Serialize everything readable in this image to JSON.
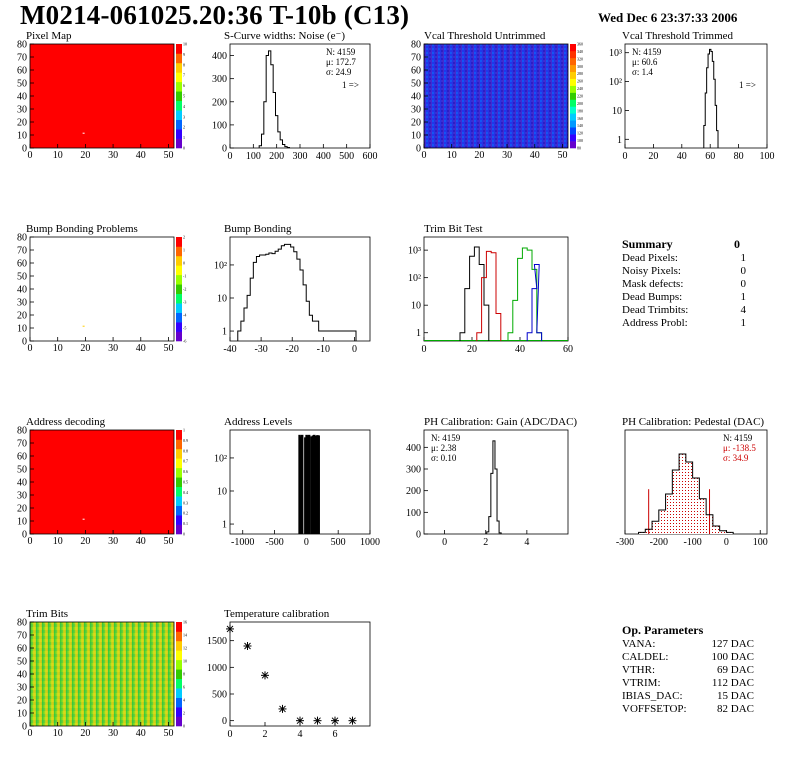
{
  "header": {
    "title": "M0214-061025.20:36 T-10b (C13)",
    "date": "Wed Dec  6 23:37:33 2006"
  },
  "colors": {
    "map_red": "#ff0000",
    "hist_line": "#000000",
    "trim_red": "#cc0000",
    "trim_green": "#00aa00",
    "trim_blue": "#0000cc",
    "pedestal_stats": "#cc0000"
  },
  "summary": {
    "title": "Summary",
    "total": "0",
    "rows": [
      {
        "label": "Dead Pixels:",
        "value": "1"
      },
      {
        "label": "Noisy Pixels:",
        "value": "0"
      },
      {
        "label": "Mask defects:",
        "value": "0"
      },
      {
        "label": "Dead Bumps:",
        "value": "1"
      },
      {
        "label": "Dead Trimbits:",
        "value": "4"
      },
      {
        "label": "Address Probl:",
        "value": "1"
      }
    ]
  },
  "op_params": {
    "title": "Op. Parameters",
    "rows": [
      {
        "label": "VANA:",
        "value": "127 DAC"
      },
      {
        "label": "CALDEL:",
        "value": "100 DAC"
      },
      {
        "label": "VTHR:",
        "value": "69 DAC"
      },
      {
        "label": "VTRIM:",
        "value": "112 DAC"
      },
      {
        "label": "IBIAS_DAC:",
        "value": "15 DAC"
      },
      {
        "label": "VOFFSETOP:",
        "value": "82 DAC"
      }
    ]
  },
  "chart_data": [
    {
      "id": "pixel-map",
      "type": "heatmap",
      "title": "Pixel Map",
      "fill": "red-uniform",
      "xticks": [
        "0",
        "10",
        "20",
        "30",
        "40",
        "50"
      ],
      "yticks": [
        "0",
        "10",
        "20",
        "30",
        "40",
        "50",
        "60",
        "70",
        "80"
      ],
      "xlim": [
        0,
        52
      ],
      "ylim": [
        0,
        80
      ],
      "palette_labels": [
        "0",
        "1",
        "2",
        "3",
        "4",
        "5",
        "6",
        "7",
        "8",
        "9",
        "10"
      ]
    },
    {
      "id": "noise",
      "type": "histogram",
      "title": "S-Curve widths: Noise (e⁻)",
      "log": false,
      "xlim": [
        0,
        600
      ],
      "ylim": [
        0,
        450
      ],
      "xticks": [
        "0",
        "100",
        "200",
        "300",
        "400",
        "500",
        "600"
      ],
      "yticks": [
        "0",
        "100",
        "200",
        "300",
        "400"
      ],
      "x": [
        130,
        140,
        150,
        160,
        170,
        180,
        190,
        200,
        210,
        220,
        230,
        240,
        250
      ],
      "values": [
        10,
        60,
        200,
        400,
        420,
        360,
        240,
        140,
        70,
        35,
        15,
        6,
        2
      ],
      "stats": [
        {
          "label": "N:",
          "value": "4159"
        },
        {
          "label": "μ:",
          "value": "172.7"
        },
        {
          "label": "σ:",
          "value": "24.9"
        }
      ],
      "overflow": "1 =>"
    },
    {
      "id": "vcal-untrimmed",
      "type": "heatmap",
      "title": "Vcal Threshold Untrimmed",
      "fill": "noise-blue",
      "xticks": [
        "0",
        "10",
        "20",
        "30",
        "40",
        "50"
      ],
      "yticks": [
        "0",
        "10",
        "20",
        "30",
        "40",
        "50",
        "60",
        "70",
        "80"
      ],
      "xlim": [
        0,
        52
      ],
      "ylim": [
        0,
        80
      ],
      "palette_labels": [
        "80",
        "100",
        "120",
        "140",
        "160",
        "180",
        "200",
        "220",
        "240",
        "260",
        "280",
        "300",
        "320",
        "340",
        "360"
      ]
    },
    {
      "id": "vcal-trimmed",
      "type": "histogram",
      "title": "Vcal Threshold Trimmed",
      "log": true,
      "xlim": [
        0,
        100
      ],
      "ylim": [
        0.5,
        2000
      ],
      "xticks": [
        "0",
        "20",
        "40",
        "60",
        "80",
        "100"
      ],
      "yticks": [
        "1",
        "10",
        "10²",
        "10³"
      ],
      "x": [
        56,
        57,
        58,
        59,
        60,
        61,
        62,
        63,
        64,
        65
      ],
      "values": [
        3,
        40,
        300,
        900,
        1300,
        1100,
        500,
        120,
        15,
        2
      ],
      "stats": [
        {
          "label": "N:",
          "value": "4159"
        },
        {
          "label": "μ:",
          "value": "60.6"
        },
        {
          "label": "σ:",
          "value": "1.4"
        }
      ],
      "overflow": "1 =>"
    },
    {
      "id": "bump-problems",
      "type": "heatmap",
      "title": "Bump Bonding Problems",
      "fill": "white",
      "xticks": [
        "0",
        "10",
        "20",
        "30",
        "40",
        "50"
      ],
      "yticks": [
        "0",
        "10",
        "20",
        "30",
        "40",
        "50",
        "60",
        "70",
        "80"
      ],
      "xlim": [
        0,
        52
      ],
      "ylim": [
        0,
        80
      ],
      "palette_labels": [
        "-6",
        "-5",
        "-4",
        "-3",
        "-2",
        "-1",
        "0",
        "1",
        "2"
      ]
    },
    {
      "id": "bump-bonding",
      "type": "histogram",
      "title": "Bump Bonding",
      "log": true,
      "xlim": [
        -40,
        5
      ],
      "ylim": [
        0.5,
        700
      ],
      "xticks": [
        "-40",
        "-30",
        "-20",
        "-10",
        "0"
      ],
      "yticks": [
        "1",
        "10",
        "10²"
      ],
      "x": [
        -37,
        -36,
        -35,
        -34,
        -33,
        -32,
        -31,
        -30,
        -29,
        -28,
        -27,
        -26,
        -25,
        -24,
        -23,
        -22,
        -21,
        -20,
        -19,
        -18,
        -17,
        -16,
        -15,
        -14,
        -13,
        -12,
        -11,
        -10,
        -1,
        0
      ],
      "values": [
        1,
        2,
        5,
        12,
        40,
        120,
        180,
        200,
        200,
        210,
        230,
        220,
        260,
        300,
        380,
        420,
        420,
        350,
        250,
        150,
        70,
        25,
        8,
        3,
        2,
        2,
        1,
        1,
        1,
        1
      ]
    },
    {
      "id": "trim-bit-test",
      "type": "line",
      "title": "Trim Bit Test",
      "log": true,
      "xlim": [
        0,
        60
      ],
      "ylim": [
        0.5,
        3000
      ],
      "xticks": [
        "0",
        "20",
        "40",
        "60"
      ],
      "yticks": [
        "1",
        "10",
        "10²",
        "10³"
      ],
      "series": [
        {
          "x": [
            16,
            18,
            20,
            22,
            24,
            26
          ],
          "values": [
            1,
            40,
            600,
            1300,
            300,
            10
          ]
        },
        {
          "x": [
            23,
            25,
            27,
            29,
            31
          ],
          "values": [
            1,
            100,
            900,
            800,
            5
          ]
        },
        {
          "x": [
            36,
            38,
            40,
            42,
            44,
            46,
            48
          ],
          "values": [
            1,
            15,
            500,
            1200,
            1000,
            200,
            1
          ]
        },
        {
          "x": [
            44,
            46,
            47,
            48
          ],
          "values": [
            1,
            40,
            300,
            1
          ]
        }
      ]
    },
    {
      "id": "address-decoding",
      "type": "heatmap",
      "title": "Address decoding",
      "fill": "red-uniform",
      "xticks": [
        "0",
        "10",
        "20",
        "30",
        "40",
        "50"
      ],
      "yticks": [
        "0",
        "10",
        "20",
        "30",
        "40",
        "50",
        "60",
        "70",
        "80"
      ],
      "xlim": [
        0,
        52
      ],
      "ylim": [
        0,
        80
      ],
      "palette_labels": [
        "0",
        "0.1",
        "0.2",
        "0.3",
        "0.4",
        "0.5",
        "0.6",
        "0.7",
        "0.8",
        "0.9",
        "1"
      ]
    },
    {
      "id": "address-levels",
      "type": "bar",
      "title": "Address Levels",
      "log": true,
      "xlim": [
        -1200,
        1000
      ],
      "ylim": [
        0.5,
        700
      ],
      "xticks": [
        "-1000",
        "-500",
        "0",
        "500",
        "1000"
      ],
      "yticks": [
        "1",
        "10",
        "10²"
      ],
      "x": [
        -110,
        -90,
        -70,
        -20,
        0,
        20,
        40,
        80,
        100,
        120,
        150,
        170,
        190
      ],
      "values": [
        500,
        450,
        500,
        420,
        500,
        480,
        500,
        450,
        480,
        500,
        470,
        490,
        480
      ]
    },
    {
      "id": "ph-gain",
      "type": "histogram",
      "title": "PH Calibration: Gain (ADC/DAC)",
      "log": false,
      "xlim": [
        -1,
        6
      ],
      "ylim": [
        0,
        480
      ],
      "xticks": [
        "0",
        "2",
        "4"
      ],
      "yticks": [
        "0",
        "100",
        "200",
        "300",
        "400"
      ],
      "x": [
        2.1,
        2.2,
        2.3,
        2.4,
        2.5,
        2.6,
        2.7
      ],
      "values": [
        10,
        80,
        280,
        430,
        300,
        60,
        5
      ],
      "stats": [
        {
          "label": "N:",
          "value": "4159"
        },
        {
          "label": "μ:",
          "value": "2.38"
        },
        {
          "label": "σ:",
          "value": "0.10"
        }
      ]
    },
    {
      "id": "ph-pedestal",
      "type": "histogram",
      "title": "PH Calibration: Pedestal (DAC)",
      "log": false,
      "xlim": [
        -300,
        120
      ],
      "ylim": [
        0,
        65
      ],
      "xticks": [
        "-300",
        "-200",
        "-100",
        "0",
        "100"
      ],
      "yticks": [],
      "x": [
        -250,
        -230,
        -210,
        -190,
        -170,
        -150,
        -130,
        -110,
        -90,
        -70,
        -50,
        -30,
        -10,
        10
      ],
      "values": [
        1,
        3,
        8,
        15,
        25,
        40,
        50,
        45,
        35,
        22,
        12,
        5,
        2,
        1
      ],
      "stats": [
        {
          "label": "N:",
          "value": "4159"
        },
        {
          "label": "μ:",
          "value": "-138.5"
        },
        {
          "label": "σ:",
          "value": "34.9"
        }
      ]
    },
    {
      "id": "trim-bits",
      "type": "heatmap",
      "title": "Trim Bits",
      "fill": "trim-gradient",
      "xticks": [
        "0",
        "10",
        "20",
        "30",
        "40",
        "50"
      ],
      "yticks": [
        "0",
        "10",
        "20",
        "30",
        "40",
        "50",
        "60",
        "70",
        "80"
      ],
      "xlim": [
        0,
        52
      ],
      "ylim": [
        0,
        80
      ],
      "palette_labels": [
        "0",
        "2",
        "4",
        "6",
        "8",
        "10",
        "12",
        "14",
        "16"
      ]
    },
    {
      "id": "temperature",
      "type": "scatter",
      "title": "Temperature calibration",
      "log": false,
      "xlim": [
        0,
        8
      ],
      "ylim": [
        -100,
        1850
      ],
      "xticks": [
        "0",
        "2",
        "4",
        "6"
      ],
      "yticks": [
        "0",
        "500",
        "1000",
        "1500"
      ],
      "x": [
        0,
        1,
        2,
        3,
        4,
        5,
        6,
        7
      ],
      "values": [
        1720,
        1400,
        850,
        220,
        0,
        0,
        0,
        0
      ]
    }
  ]
}
